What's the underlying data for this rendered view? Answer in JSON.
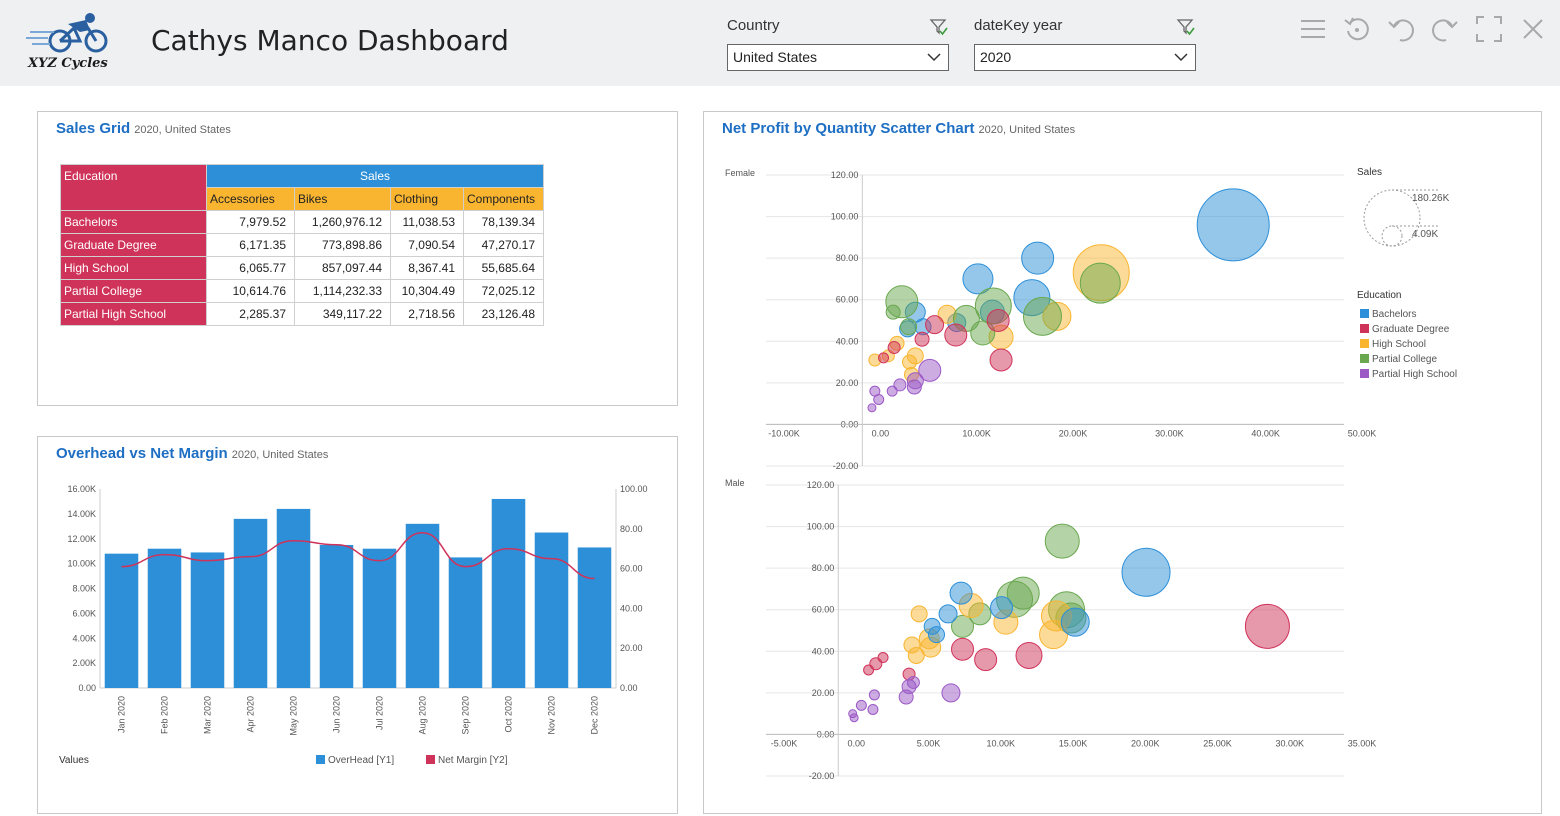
{
  "header": {
    "logo_text": "XYZ Cycles",
    "title": "Cathys Manco Dashboard",
    "filters": [
      {
        "label": "Country",
        "value": "United States"
      },
      {
        "label": "dateKey year",
        "value": "2020"
      }
    ],
    "toolbar_icons": [
      "menu-icon",
      "refresh-icon",
      "undo-icon",
      "redo-icon",
      "fullscreen-icon",
      "close-icon"
    ]
  },
  "colors": {
    "accent": "#1e6fc4",
    "bachelors": "#2c8fd8",
    "graduate": "#d0335a",
    "high_school": "#f9b530",
    "partial_college": "#6aa84f",
    "partial_high_school": "#9b59c6"
  },
  "sales_grid": {
    "title": "Sales Grid",
    "subtitle": "2020, United States",
    "row_header": "Education",
    "group_header": "Sales",
    "columns": [
      "Accessories",
      "Bikes",
      "Clothing",
      "Components"
    ],
    "rows": [
      {
        "label": "Bachelors",
        "values": [
          "7,979.52",
          "1,260,976.12",
          "11,038.53",
          "78,139.34"
        ]
      },
      {
        "label": "Graduate Degree",
        "values": [
          "6,171.35",
          "773,898.86",
          "7,090.54",
          "47,270.17"
        ]
      },
      {
        "label": "High School",
        "values": [
          "6,065.77",
          "857,097.44",
          "8,367.41",
          "55,685.64"
        ]
      },
      {
        "label": "Partial College",
        "values": [
          "10,614.76",
          "1,114,232.33",
          "10,304.49",
          "72,025.12"
        ]
      },
      {
        "label": "Partial High School",
        "values": [
          "2,285.37",
          "349,117.22",
          "2,718.56",
          "23,126.48"
        ]
      }
    ]
  },
  "overhead_chart": {
    "title": "Overhead vs Net Margin",
    "subtitle": "2020, United States",
    "values_label": "Values",
    "chart_data": {
      "type": "bar",
      "categories": [
        "Jan 2020",
        "Feb 2020",
        "Mar 2020",
        "Apr 2020",
        "May 2020",
        "Jun 2020",
        "Jul 2020",
        "Aug 2020",
        "Sep 2020",
        "Oct 2020",
        "Nov 2020",
        "Dec 2020"
      ],
      "y1_ticks": [
        "0.00",
        "2.00K",
        "4.00K",
        "6.00K",
        "8.00K",
        "10.00K",
        "12.00K",
        "14.00K",
        "16.00K"
      ],
      "y2_ticks": [
        "0.00",
        "20.00",
        "40.00",
        "60.00",
        "80.00",
        "100.00"
      ],
      "y1lim": [
        0,
        16000
      ],
      "y2lim": [
        0,
        100
      ],
      "series": [
        {
          "name": "OverHead [Y1]",
          "axis": "y1",
          "kind": "bar",
          "color": "#2c8fd8",
          "values": [
            10800,
            11200,
            10900,
            13600,
            14400,
            11500,
            11200,
            13200,
            10500,
            15200,
            12500,
            11300
          ]
        },
        {
          "name": "Net Margin [Y2]",
          "axis": "y2",
          "kind": "line",
          "color": "#d0335a",
          "values": [
            61,
            67,
            64,
            66,
            74,
            72,
            64,
            78,
            61,
            70,
            65,
            55
          ]
        }
      ]
    }
  },
  "scatter_chart": {
    "title": "Net Profit by Quantity Scatter Chart",
    "subtitle": "2020, United States",
    "size_legend_title": "Sales",
    "size_legend_max": "180.26K",
    "size_legend_min": "4.09K",
    "color_legend_title": "Education",
    "color_legend": [
      {
        "name": "Bachelors",
        "color": "#2c8fd8"
      },
      {
        "name": "Graduate Degree",
        "color": "#d0335a"
      },
      {
        "name": "High School",
        "color": "#f9b530"
      },
      {
        "name": "Partial College",
        "color": "#6aa84f"
      },
      {
        "name": "Partial High School",
        "color": "#9b59c6"
      }
    ],
    "chart_data": [
      {
        "type": "scatter",
        "panel": "Female",
        "x_ticks": [
          "-10.00K",
          "0.00",
          "10.00K",
          "20.00K",
          "30.00K",
          "40.00K",
          "50.00K"
        ],
        "y_ticks": [
          "-20.00",
          "0.00",
          "20.00",
          "40.00",
          "60.00",
          "80.00",
          "100.00",
          "120.00"
        ],
        "xlim": [
          -10000,
          50000
        ],
        "ylim": [
          -20,
          120
        ],
        "points": [
          {
            "s": "Bachelors",
            "x": 38500,
            "y": 96,
            "r": 36
          },
          {
            "s": "Bachelors",
            "x": 18200,
            "y": 80,
            "r": 16
          },
          {
            "s": "Bachelors",
            "x": 12000,
            "y": 70,
            "r": 15
          },
          {
            "s": "Bachelors",
            "x": 17600,
            "y": 61,
            "r": 18
          },
          {
            "s": "Bachelors",
            "x": 5500,
            "y": 54,
            "r": 10
          },
          {
            "s": "Bachelors",
            "x": 4700,
            "y": 46,
            "r": 8
          },
          {
            "s": "Bachelors",
            "x": 6300,
            "y": 47,
            "r": 8
          },
          {
            "s": "Bachelors",
            "x": 9800,
            "y": 49,
            "r": 9
          },
          {
            "s": "Bachelors",
            "x": 13500,
            "y": 54,
            "r": 12
          },
          {
            "s": "High School",
            "x": 24800,
            "y": 73,
            "r": 28
          },
          {
            "s": "High School",
            "x": 20200,
            "y": 52,
            "r": 14
          },
          {
            "s": "High School",
            "x": 14400,
            "y": 42,
            "r": 12
          },
          {
            "s": "High School",
            "x": 5500,
            "y": 33,
            "r": 8
          },
          {
            "s": "High School",
            "x": 4900,
            "y": 30,
            "r": 7
          },
          {
            "s": "High School",
            "x": 3600,
            "y": 39,
            "r": 7
          },
          {
            "s": "High School",
            "x": 2700,
            "y": 33,
            "r": 6
          },
          {
            "s": "High School",
            "x": 1300,
            "y": 31,
            "r": 6
          },
          {
            "s": "High School",
            "x": 8800,
            "y": 53,
            "r": 9
          },
          {
            "s": "High School",
            "x": 5100,
            "y": 24,
            "r": 7
          },
          {
            "s": "Partial College",
            "x": 24700,
            "y": 68,
            "r": 20
          },
          {
            "s": "Partial College",
            "x": 18700,
            "y": 52,
            "r": 19
          },
          {
            "s": "Partial College",
            "x": 4100,
            "y": 59,
            "r": 16
          },
          {
            "s": "Partial College",
            "x": 13600,
            "y": 57,
            "r": 18
          },
          {
            "s": "Partial College",
            "x": 10800,
            "y": 51,
            "r": 13
          },
          {
            "s": "Partial College",
            "x": 12500,
            "y": 44,
            "r": 12
          },
          {
            "s": "Partial College",
            "x": 4800,
            "y": 47,
            "r": 8
          },
          {
            "s": "Partial College",
            "x": 3200,
            "y": 54,
            "r": 7
          },
          {
            "s": "Graduate Degree",
            "x": 9700,
            "y": 43,
            "r": 11
          },
          {
            "s": "Graduate Degree",
            "x": 14100,
            "y": 50,
            "r": 11
          },
          {
            "s": "Graduate Degree",
            "x": 14400,
            "y": 31,
            "r": 11
          },
          {
            "s": "Graduate Degree",
            "x": 7500,
            "y": 48,
            "r": 9
          },
          {
            "s": "Graduate Degree",
            "x": 6200,
            "y": 41,
            "r": 7
          },
          {
            "s": "Graduate Degree",
            "x": 3300,
            "y": 37,
            "r": 6
          },
          {
            "s": "Graduate Degree",
            "x": 2200,
            "y": 32,
            "r": 5
          },
          {
            "s": "Partial High School",
            "x": 7000,
            "y": 26,
            "r": 11
          },
          {
            "s": "Partial High School",
            "x": 5400,
            "y": 18,
            "r": 7
          },
          {
            "s": "Partial High School",
            "x": 5500,
            "y": 21,
            "r": 8
          },
          {
            "s": "Partial High School",
            "x": 3900,
            "y": 19,
            "r": 6
          },
          {
            "s": "Partial High School",
            "x": 3100,
            "y": 16,
            "r": 5
          },
          {
            "s": "Partial High School",
            "x": 1300,
            "y": 16,
            "r": 5
          },
          {
            "s": "Partial High School",
            "x": 1700,
            "y": 12,
            "r": 5
          },
          {
            "s": "Partial High School",
            "x": 1000,
            "y": 8,
            "r": 4
          }
        ]
      },
      {
        "type": "scatter",
        "panel": "Male",
        "x_ticks": [
          "-5.00K",
          "0.00",
          "5.00K",
          "10.00K",
          "15.00K",
          "20.00K",
          "25.00K",
          "30.00K",
          "35.00K"
        ],
        "y_ticks": [
          "-20.00",
          "0.00",
          "20.00",
          "40.00",
          "60.00",
          "80.00",
          "100.00",
          "120.00"
        ],
        "xlim": [
          -5000,
          35000
        ],
        "ylim": [
          -20,
          120
        ],
        "points": [
          {
            "s": "Partial College",
            "x": 15500,
            "y": 93,
            "r": 17
          },
          {
            "s": "Bachelors",
            "x": 21300,
            "y": 78,
            "r": 24
          },
          {
            "s": "Graduate Degree",
            "x": 29700,
            "y": 52,
            "r": 22
          },
          {
            "s": "Partial College",
            "x": 12800,
            "y": 68,
            "r": 16
          },
          {
            "s": "Partial College",
            "x": 12200,
            "y": 65,
            "r": 18
          },
          {
            "s": "Partial College",
            "x": 15800,
            "y": 60,
            "r": 18
          },
          {
            "s": "Partial College",
            "x": 16100,
            "y": 56,
            "r": 15
          },
          {
            "s": "Partial College",
            "x": 9800,
            "y": 58,
            "r": 11
          },
          {
            "s": "Partial College",
            "x": 8600,
            "y": 52,
            "r": 11
          },
          {
            "s": "High School",
            "x": 14900,
            "y": 48,
            "r": 14
          },
          {
            "s": "High School",
            "x": 15100,
            "y": 57,
            "r": 15
          },
          {
            "s": "High School",
            "x": 11600,
            "y": 54,
            "r": 12
          },
          {
            "s": "High School",
            "x": 9200,
            "y": 62,
            "r": 12
          },
          {
            "s": "High School",
            "x": 6300,
            "y": 46,
            "r": 10
          },
          {
            "s": "High School",
            "x": 6400,
            "y": 42,
            "r": 10
          },
          {
            "s": "High School",
            "x": 5100,
            "y": 43,
            "r": 8
          },
          {
            "s": "High School",
            "x": 5400,
            "y": 38,
            "r": 8
          },
          {
            "s": "High School",
            "x": 5600,
            "y": 58,
            "r": 8
          },
          {
            "s": "Bachelors",
            "x": 8500,
            "y": 68,
            "r": 11
          },
          {
            "s": "Bachelors",
            "x": 11300,
            "y": 61,
            "r": 11
          },
          {
            "s": "Bachelors",
            "x": 16400,
            "y": 54,
            "r": 14
          },
          {
            "s": "Bachelors",
            "x": 7600,
            "y": 58,
            "r": 9
          },
          {
            "s": "Bachelors",
            "x": 6500,
            "y": 52,
            "r": 8
          },
          {
            "s": "Bachelors",
            "x": 6800,
            "y": 48,
            "r": 8
          },
          {
            "s": "Graduate Degree",
            "x": 13200,
            "y": 38,
            "r": 13
          },
          {
            "s": "Graduate Degree",
            "x": 10200,
            "y": 36,
            "r": 11
          },
          {
            "s": "Graduate Degree",
            "x": 8600,
            "y": 41,
            "r": 11
          },
          {
            "s": "Graduate Degree",
            "x": 2600,
            "y": 34,
            "r": 6
          },
          {
            "s": "Graduate Degree",
            "x": 3100,
            "y": 37,
            "r": 5
          },
          {
            "s": "Graduate Degree",
            "x": 2100,
            "y": 31,
            "r": 5
          },
          {
            "s": "Graduate Degree",
            "x": 4900,
            "y": 29,
            "r": 6
          },
          {
            "s": "Partial High School",
            "x": 7800,
            "y": 20,
            "r": 9
          },
          {
            "s": "Partial High School",
            "x": 4900,
            "y": 23,
            "r": 7
          },
          {
            "s": "Partial High School",
            "x": 4700,
            "y": 18,
            "r": 7
          },
          {
            "s": "Partial High School",
            "x": 5200,
            "y": 25,
            "r": 6
          },
          {
            "s": "Partial High School",
            "x": 2500,
            "y": 19,
            "r": 5
          },
          {
            "s": "Partial High School",
            "x": 1600,
            "y": 14,
            "r": 5
          },
          {
            "s": "Partial High School",
            "x": 2400,
            "y": 12,
            "r": 5
          },
          {
            "s": "Partial High School",
            "x": 1000,
            "y": 10,
            "r": 4
          },
          {
            "s": "Partial High School",
            "x": 1100,
            "y": 8,
            "r": 4
          }
        ]
      }
    ]
  }
}
